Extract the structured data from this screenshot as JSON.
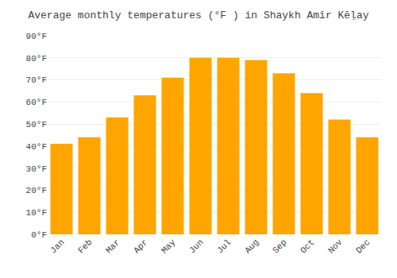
{
  "chart_data": {
    "type": "bar",
    "title": "Average monthly temperatures (°F ) in Shaykh Amīr Kēḷay",
    "categories": [
      "Jan",
      "Feb",
      "Mar",
      "Apr",
      "May",
      "Jun",
      "Jul",
      "Aug",
      "Sep",
      "Oct",
      "Nov",
      "Dec"
    ],
    "values": [
      41,
      44,
      53,
      63,
      71,
      80,
      80,
      79,
      73,
      64,
      52,
      44
    ],
    "color": "#FFA500",
    "ylim": [
      0,
      90
    ],
    "yticks": [
      {
        "value": 0,
        "label": "0°F"
      },
      {
        "value": 10,
        "label": "10°F"
      },
      {
        "value": 20,
        "label": "20°F"
      },
      {
        "value": 30,
        "label": "30°F"
      },
      {
        "value": 40,
        "label": "40°F"
      },
      {
        "value": 50,
        "label": "50°F"
      },
      {
        "value": 60,
        "label": "60°F"
      },
      {
        "value": 70,
        "label": "70°F"
      },
      {
        "value": 80,
        "label": "80°F"
      },
      {
        "value": 90,
        "label": "90°F"
      }
    ],
    "grid": true
  }
}
